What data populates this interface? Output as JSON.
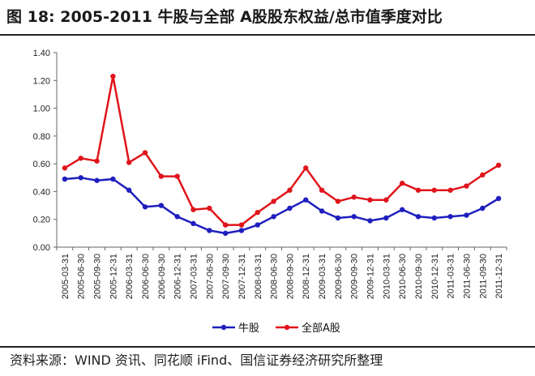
{
  "title": "图 18: 2005-2011 牛股与全部 A股股东权益/总市值季度对比",
  "source": "资料来源：WIND 资讯、同花顺 iFind、国信证券经济研究所整理",
  "chart_data": {
    "type": "line",
    "x": [
      "2005-03-31",
      "2005-06-30",
      "2005-09-30",
      "2005-12-31",
      "2006-03-31",
      "2006-06-30",
      "2006-09-30",
      "2006-12-31",
      "2007-03-31",
      "2007-06-30",
      "2007-09-30",
      "2007-12-31",
      "2008-03-31",
      "2008-06-30",
      "2008-09-30",
      "2008-12-31",
      "2009-03-31",
      "2009-06-30",
      "2009-09-30",
      "2009-12-31",
      "2010-03-31",
      "2010-06-30",
      "2010-09-30",
      "2010-12-31",
      "2011-03-31",
      "2011-06-30",
      "2011-09-30",
      "2011-12-31"
    ],
    "series": [
      {
        "name": "牛股",
        "color": "#1f1fbf",
        "values": [
          0.49,
          0.5,
          0.48,
          0.49,
          0.41,
          0.29,
          0.3,
          0.22,
          0.17,
          0.12,
          0.1,
          0.12,
          0.16,
          0.22,
          0.28,
          0.34,
          0.26,
          0.21,
          0.22,
          0.19,
          0.21,
          0.27,
          0.22,
          0.21,
          0.22,
          0.23,
          0.28,
          0.35
        ]
      },
      {
        "name": "全部A股",
        "color": "#e0141b",
        "values": [
          0.57,
          0.64,
          0.62,
          1.23,
          0.61,
          0.68,
          0.51,
          0.51,
          0.27,
          0.28,
          0.16,
          0.16,
          0.25,
          0.33,
          0.41,
          0.57,
          0.41,
          0.33,
          0.36,
          0.34,
          0.34,
          0.46,
          0.41,
          0.41,
          0.41,
          0.44,
          0.52,
          0.59
        ]
      }
    ],
    "yticks": [
      "0.00",
      "0.20",
      "0.40",
      "0.60",
      "0.80",
      "1.00",
      "1.20",
      "1.40"
    ],
    "ylim": [
      0,
      1.4
    ],
    "grid": false,
    "legend_position": "bottom"
  }
}
